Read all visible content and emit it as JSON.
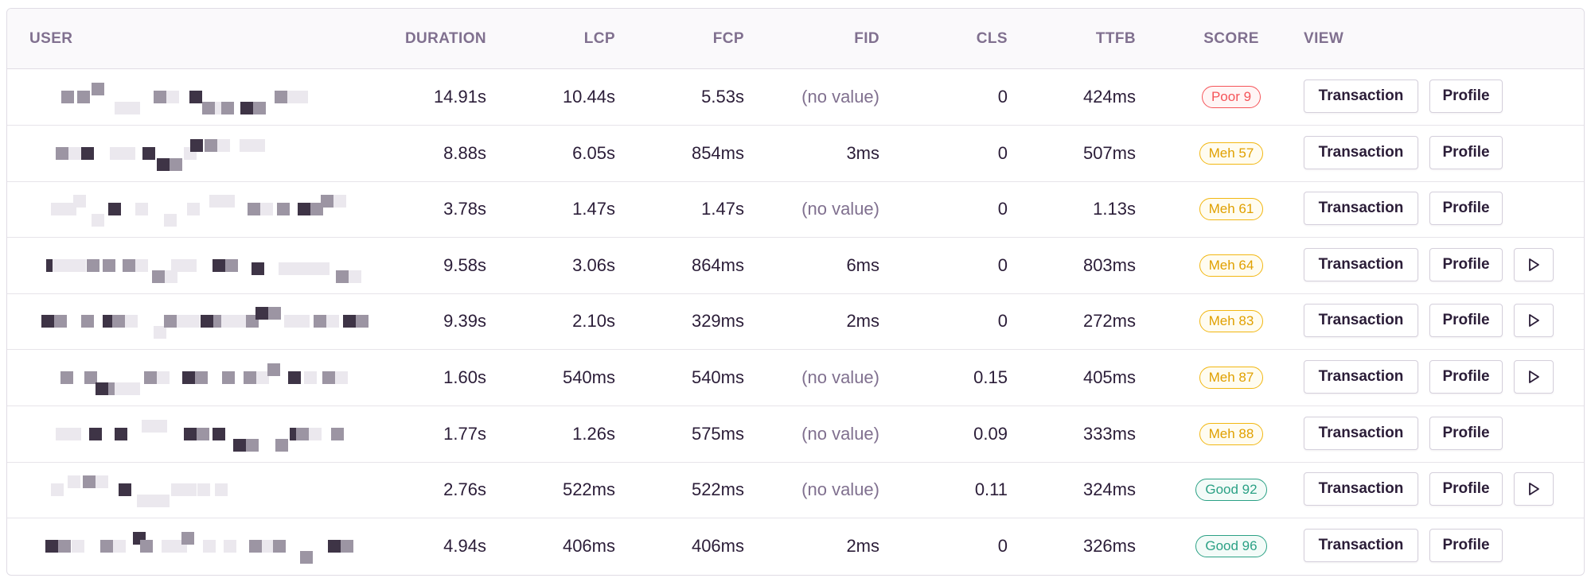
{
  "table": {
    "headers": {
      "user": "USER",
      "duration": "DURATION",
      "lcp": "LCP",
      "fcp": "FCP",
      "fid": "FID",
      "cls": "CLS",
      "ttfb": "TTFB",
      "score": "SCORE",
      "view": "VIEW"
    },
    "action_labels": {
      "transaction": "Transaction",
      "profile": "Profile"
    },
    "colors": {
      "poor": "#f55459",
      "meh": "#f2b712",
      "good": "#2ba185",
      "muted_text": "#80708f",
      "pixel_dark": "#3e3446",
      "pixel_mid": "#9c95a3",
      "pixel_light": "#ebe8ee"
    },
    "rows": [
      {
        "duration": "14.91s",
        "lcp": "10.44s",
        "fcp": "5.53s",
        "fid": "(no value)",
        "cls": "0",
        "ttfb": "424ms",
        "score": "Poor 9",
        "score_level": "poor",
        "has_replay": false
      },
      {
        "duration": "8.88s",
        "lcp": "6.05s",
        "fcp": "854ms",
        "fid": "3ms",
        "cls": "0",
        "ttfb": "507ms",
        "score": "Meh 57",
        "score_level": "meh",
        "has_replay": false
      },
      {
        "duration": "3.78s",
        "lcp": "1.47s",
        "fcp": "1.47s",
        "fid": "(no value)",
        "cls": "0",
        "ttfb": "1.13s",
        "score": "Meh 61",
        "score_level": "meh",
        "has_replay": false
      },
      {
        "duration": "9.58s",
        "lcp": "3.06s",
        "fcp": "864ms",
        "fid": "6ms",
        "cls": "0",
        "ttfb": "803ms",
        "score": "Meh 64",
        "score_level": "meh",
        "has_replay": true
      },
      {
        "duration": "9.39s",
        "lcp": "2.10s",
        "fcp": "329ms",
        "fid": "2ms",
        "cls": "0",
        "ttfb": "272ms",
        "score": "Meh 83",
        "score_level": "meh",
        "has_replay": true
      },
      {
        "duration": "1.60s",
        "lcp": "540ms",
        "fcp": "540ms",
        "fid": "(no value)",
        "cls": "0.15",
        "ttfb": "405ms",
        "score": "Meh 87",
        "score_level": "meh",
        "has_replay": true
      },
      {
        "duration": "1.77s",
        "lcp": "1.26s",
        "fcp": "575ms",
        "fid": "(no value)",
        "cls": "0.09",
        "ttfb": "333ms",
        "score": "Meh 88",
        "score_level": "meh",
        "has_replay": false
      },
      {
        "duration": "2.76s",
        "lcp": "522ms",
        "fcp": "522ms",
        "fid": "(no value)",
        "cls": "0.11",
        "ttfb": "324ms",
        "score": "Good 92",
        "score_level": "good",
        "has_replay": true
      },
      {
        "duration": "4.94s",
        "lcp": "406ms",
        "fcp": "406ms",
        "fid": "2ms",
        "cls": "0",
        "ttfb": "326ms",
        "score": "Good 96",
        "score_level": "good",
        "has_replay": false
      }
    ],
    "icons": {
      "user": "pixelated-avatar-icon",
      "replay": "play-icon"
    }
  }
}
